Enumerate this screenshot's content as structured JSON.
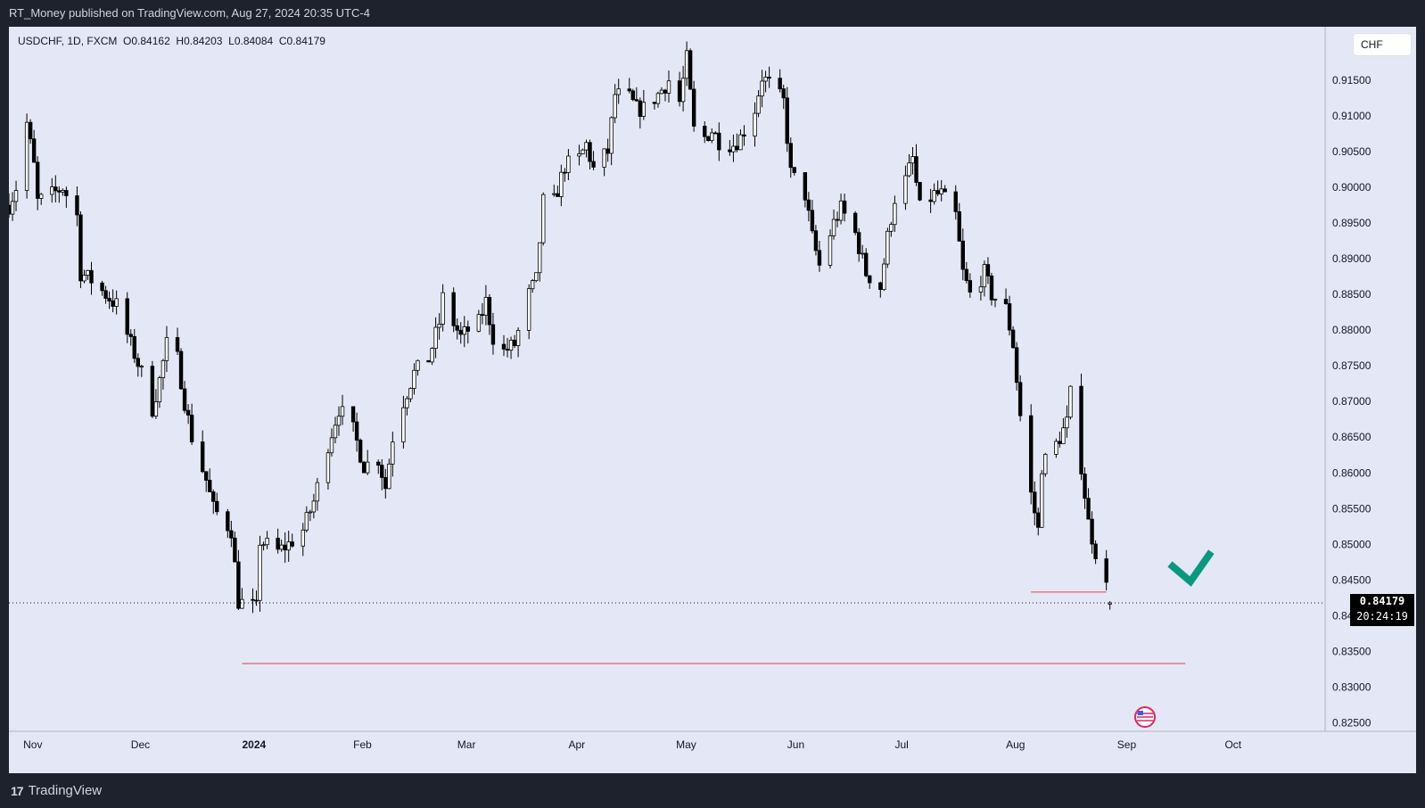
{
  "header": {
    "publish_text": "RT_Money published on TradingView.com, Aug 27, 2024 20:35 UTC-4"
  },
  "footer": {
    "brand": "TradingView",
    "logo": "tv-logo-icon"
  },
  "legend": {
    "symbol": "USDCHF",
    "interval": "1D",
    "source": "FXCM",
    "open": "O0.84162",
    "high": "H0.84203",
    "low": "L0.84084",
    "close": "C0.84179"
  },
  "currency": "CHF",
  "last_price": {
    "value": "0.84179",
    "countdown": "20:24:19"
  },
  "colors": {
    "background": "#e4e8f6",
    "frame": "#1e222d",
    "up": "#ffffff",
    "down": "#000000",
    "level": "#f23645",
    "check": "#089981"
  },
  "icons": {
    "checkmark": "checkmark-icon",
    "event": "us-flag-event-icon"
  },
  "chart_data": {
    "type": "candlestick",
    "symbol": "USDCHF",
    "timeframe": "1D",
    "y_ticks": [
      "0.91500",
      "0.91000",
      "0.90500",
      "0.90000",
      "0.89500",
      "0.89000",
      "0.88500",
      "0.88000",
      "0.87500",
      "0.87000",
      "0.86500",
      "0.86000",
      "0.85500",
      "0.85000",
      "0.84500",
      "0.84000",
      "0.83500",
      "0.83000",
      "0.82500"
    ],
    "ylim": [
      0.8238,
      0.9225
    ],
    "x_ticks": [
      {
        "label": "Nov",
        "date": "2023-11-01",
        "bold": false
      },
      {
        "label": "Dec",
        "date": "2023-12-01",
        "bold": false
      },
      {
        "label": "2024",
        "date": "2024-01-01",
        "bold": true
      },
      {
        "label": "Feb",
        "date": "2024-02-01",
        "bold": false
      },
      {
        "label": "Mar",
        "date": "2024-03-01",
        "bold": false
      },
      {
        "label": "Apr",
        "date": "2024-04-01",
        "bold": false
      },
      {
        "label": "May",
        "date": "2024-05-01",
        "bold": false
      },
      {
        "label": "Jun",
        "date": "2024-06-01",
        "bold": false
      },
      {
        "label": "Jul",
        "date": "2024-07-01",
        "bold": false
      },
      {
        "label": "Aug",
        "date": "2024-08-01",
        "bold": false
      },
      {
        "label": "Sep",
        "date": "2024-09-01",
        "bold": false
      },
      {
        "label": "Oct",
        "date": "2024-10-01",
        "bold": false
      }
    ],
    "xlim": [
      "2023-10-25",
      "2024-10-26"
    ],
    "close_path": [
      [
        "2023-10-25",
        0.8975
      ],
      [
        "2023-10-27",
        0.9
      ],
      [
        "2023-10-30",
        0.909
      ],
      [
        "2023-11-01",
        0.903
      ],
      [
        "2023-11-02",
        0.898
      ],
      [
        "2023-11-06",
        0.899
      ],
      [
        "2023-11-09",
        0.9
      ],
      [
        "2023-11-13",
        0.896
      ],
      [
        "2023-11-14",
        0.888
      ],
      [
        "2023-11-17",
        0.887
      ],
      [
        "2023-11-21",
        0.885
      ],
      [
        "2023-11-24",
        0.8835
      ],
      [
        "2023-11-28",
        0.878
      ],
      [
        "2023-12-01",
        0.874
      ],
      [
        "2023-12-04",
        0.869
      ],
      [
        "2023-12-06",
        0.873
      ],
      [
        "2023-12-08",
        0.878
      ],
      [
        "2023-12-11",
        0.876
      ],
      [
        "2023-12-13",
        0.87
      ],
      [
        "2023-12-15",
        0.865
      ],
      [
        "2023-12-19",
        0.859
      ],
      [
        "2023-12-21",
        0.855
      ],
      [
        "2023-12-26",
        0.852
      ],
      [
        "2023-12-28",
        0.842
      ],
      [
        "2024-01-02",
        0.841
      ],
      [
        "2024-01-03",
        0.8505
      ],
      [
        "2024-01-08",
        0.849
      ],
      [
        "2024-01-11",
        0.85
      ],
      [
        "2024-01-15",
        0.852
      ],
      [
        "2024-01-18",
        0.856
      ],
      [
        "2024-01-22",
        0.864
      ],
      [
        "2024-01-25",
        0.869
      ],
      [
        "2024-01-29",
        0.866
      ],
      [
        "2024-02-01",
        0.861
      ],
      [
        "2024-02-05",
        0.862
      ],
      [
        "2024-02-07",
        0.858
      ],
      [
        "2024-02-09",
        0.865
      ],
      [
        "2024-02-12",
        0.87
      ],
      [
        "2024-02-15",
        0.874
      ],
      [
        "2024-02-19",
        0.876
      ],
      [
        "2024-02-22",
        0.881
      ],
      [
        "2024-02-23",
        0.8845
      ],
      [
        "2024-02-26",
        0.881
      ],
      [
        "2024-02-28",
        0.879
      ],
      [
        "2024-03-01",
        0.88
      ],
      [
        "2024-03-04",
        0.881
      ],
      [
        "2024-03-06",
        0.884
      ],
      [
        "2024-03-08",
        0.879
      ],
      [
        "2024-03-11",
        0.877
      ],
      [
        "2024-03-14",
        0.878
      ],
      [
        "2024-03-18",
        0.885
      ],
      [
        "2024-03-20",
        0.887
      ],
      [
        "2024-03-22",
        0.898
      ],
      [
        "2024-03-25",
        0.898
      ],
      [
        "2024-03-28",
        0.903
      ],
      [
        "2024-04-01",
        0.904
      ],
      [
        "2024-04-03",
        0.906
      ],
      [
        "2024-04-05",
        0.9025
      ],
      [
        "2024-04-09",
        0.905
      ],
      [
        "2024-04-11",
        0.913
      ],
      [
        "2024-04-15",
        0.9125
      ],
      [
        "2024-04-17",
        0.911
      ],
      [
        "2024-04-19",
        0.911
      ],
      [
        "2024-04-23",
        0.913
      ],
      [
        "2024-04-26",
        0.915
      ],
      [
        "2024-04-29",
        0.912
      ],
      [
        "2024-05-01",
        0.918
      ],
      [
        "2024-05-03",
        0.908
      ],
      [
        "2024-05-06",
        0.907
      ],
      [
        "2024-05-08",
        0.908
      ],
      [
        "2024-05-10",
        0.9065
      ],
      [
        "2024-05-14",
        0.906
      ],
      [
        "2024-05-16",
        0.907
      ],
      [
        "2024-05-20",
        0.911
      ],
      [
        "2024-05-22",
        0.9155
      ],
      [
        "2024-05-24",
        0.9145
      ],
      [
        "2024-05-28",
        0.912
      ],
      [
        "2024-05-30",
        0.902
      ],
      [
        "2024-06-03",
        0.899
      ],
      [
        "2024-06-05",
        0.893
      ],
      [
        "2024-06-07",
        0.889
      ],
      [
        "2024-06-11",
        0.895
      ],
      [
        "2024-06-13",
        0.897
      ],
      [
        "2024-06-17",
        0.8935
      ],
      [
        "2024-06-20",
        0.888
      ],
      [
        "2024-06-24",
        0.886
      ],
      [
        "2024-06-26",
        0.893
      ],
      [
        "2024-06-28",
        0.8985
      ],
      [
        "2024-07-01",
        0.901
      ],
      [
        "2024-07-03",
        0.904
      ],
      [
        "2024-07-05",
        0.897
      ],
      [
        "2024-07-09",
        0.899
      ],
      [
        "2024-07-11",
        0.899
      ],
      [
        "2024-07-15",
        0.896
      ],
      [
        "2024-07-17",
        0.888
      ],
      [
        "2024-07-19",
        0.885
      ],
      [
        "2024-07-23",
        0.888
      ],
      [
        "2024-07-25",
        0.885
      ],
      [
        "2024-07-29",
        0.883
      ],
      [
        "2024-07-31",
        0.878
      ],
      [
        "2024-08-02",
        0.868
      ],
      [
        "2024-08-05",
        0.857
      ],
      [
        "2024-08-07",
        0.852
      ],
      [
        "2024-08-08",
        0.861
      ],
      [
        "2024-08-12",
        0.864
      ],
      [
        "2024-08-15",
        0.867
      ],
      [
        "2024-08-16",
        0.871
      ],
      [
        "2024-08-19",
        0.861
      ],
      [
        "2024-08-21",
        0.853
      ],
      [
        "2024-08-23",
        0.849
      ],
      [
        "2024-08-26",
        0.844
      ],
      [
        "2024-08-27",
        0.84179
      ]
    ],
    "last_candle": {
      "open": 0.84162,
      "high": 0.84203,
      "low": 0.84084,
      "close": 0.84179
    },
    "levels": [
      {
        "price": 0.8333,
        "from": "2023-12-29",
        "to": "2024-09-17"
      },
      {
        "price": 0.8433,
        "from": "2024-08-05",
        "to": "2024-08-26"
      }
    ],
    "current_price": 0.84179,
    "grid": false,
    "legend_position": "top-left"
  }
}
